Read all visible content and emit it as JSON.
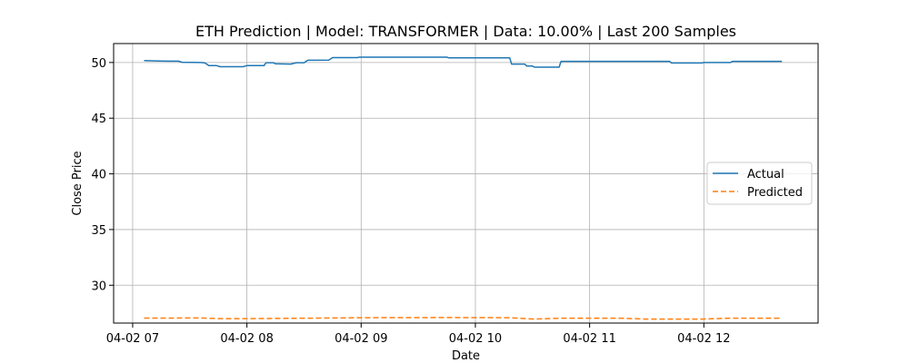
{
  "chart_data": {
    "type": "line",
    "title": "ETH Prediction | Model: TRANSFORMER | Data: 10.00% | Last 200 Samples",
    "xlabel": "Date",
    "ylabel": "Close Price",
    "grid": true,
    "legend_placement": "center-right",
    "xlim": [
      "2025-04-02 06:50",
      "2025-04-02 13:00"
    ],
    "ylim": [
      26.6,
      51.7
    ],
    "x_ticks": [
      {
        "value": "2025-04-02 07:00",
        "label": "04-02 07"
      },
      {
        "value": "2025-04-02 08:00",
        "label": "04-02 08"
      },
      {
        "value": "2025-04-02 09:00",
        "label": "04-02 09"
      },
      {
        "value": "2025-04-02 10:00",
        "label": "04-02 10"
      },
      {
        "value": "2025-04-02 11:00",
        "label": "04-02 11"
      },
      {
        "value": "2025-04-02 12:00",
        "label": "04-02 12"
      }
    ],
    "y_ticks": [
      30,
      35,
      40,
      45,
      50
    ],
    "series": [
      {
        "name": "Actual",
        "color": "#1f77b4",
        "style": "solid",
        "points": [
          [
            "2025-04-02 07:06",
            50.18
          ],
          [
            "2025-04-02 07:12",
            50.14
          ],
          [
            "2025-04-02 07:18",
            50.12
          ],
          [
            "2025-04-02 07:24",
            50.12
          ],
          [
            "2025-04-02 07:26",
            50.02
          ],
          [
            "2025-04-02 07:36",
            50.0
          ],
          [
            "2025-04-02 07:38",
            49.96
          ],
          [
            "2025-04-02 07:40",
            49.72
          ],
          [
            "2025-04-02 07:44",
            49.72
          ],
          [
            "2025-04-02 07:46",
            49.62
          ],
          [
            "2025-04-02 07:58",
            49.62
          ],
          [
            "2025-04-02 08:00",
            49.72
          ],
          [
            "2025-04-02 08:09",
            49.72
          ],
          [
            "2025-04-02 08:10",
            49.98
          ],
          [
            "2025-04-02 08:14",
            49.98
          ],
          [
            "2025-04-02 08:15",
            49.88
          ],
          [
            "2025-04-02 08:20",
            49.87
          ],
          [
            "2025-04-02 08:23",
            49.86
          ],
          [
            "2025-04-02 08:26",
            49.98
          ],
          [
            "2025-04-02 08:30",
            49.98
          ],
          [
            "2025-04-02 08:32",
            50.2
          ],
          [
            "2025-04-02 08:43",
            50.22
          ],
          [
            "2025-04-02 08:45",
            50.44
          ],
          [
            "2025-04-02 08:58",
            50.44
          ],
          [
            "2025-04-02 08:59",
            50.48
          ],
          [
            "2025-04-02 09:45",
            50.48
          ],
          [
            "2025-04-02 09:46",
            50.42
          ],
          [
            "2025-04-02 10:18",
            50.42
          ],
          [
            "2025-04-02 10:19",
            49.86
          ],
          [
            "2025-04-02 10:26",
            49.86
          ],
          [
            "2025-04-02 10:27",
            49.68
          ],
          [
            "2025-04-02 10:30",
            49.68
          ],
          [
            "2025-04-02 10:31",
            49.58
          ],
          [
            "2025-04-02 10:44",
            49.58
          ],
          [
            "2025-04-02 10:45",
            50.1
          ],
          [
            "2025-04-02 11:42",
            50.1
          ],
          [
            "2025-04-02 11:43",
            49.96
          ],
          [
            "2025-04-02 11:59",
            49.96
          ],
          [
            "2025-04-02 12:00",
            50.0
          ],
          [
            "2025-04-02 12:14",
            50.0
          ],
          [
            "2025-04-02 12:15",
            50.1
          ],
          [
            "2025-04-02 12:41",
            50.1
          ]
        ]
      },
      {
        "name": "Predicted",
        "color": "#ff7f0e",
        "style": "dashed",
        "points": [
          [
            "2025-04-02 07:06",
            27.05
          ],
          [
            "2025-04-02 07:36",
            27.06
          ],
          [
            "2025-04-02 07:46",
            27.0
          ],
          [
            "2025-04-02 08:00",
            27.0
          ],
          [
            "2025-04-02 08:20",
            27.02
          ],
          [
            "2025-04-02 08:45",
            27.06
          ],
          [
            "2025-04-02 09:00",
            27.08
          ],
          [
            "2025-04-02 09:45",
            27.1
          ],
          [
            "2025-04-02 10:18",
            27.08
          ],
          [
            "2025-04-02 10:31",
            26.96
          ],
          [
            "2025-04-02 10:45",
            27.04
          ],
          [
            "2025-04-02 11:15",
            27.04
          ],
          [
            "2025-04-02 11:30",
            26.96
          ],
          [
            "2025-04-02 11:59",
            26.96
          ],
          [
            "2025-04-02 12:14",
            27.04
          ],
          [
            "2025-04-02 12:41",
            27.04
          ]
        ]
      }
    ]
  }
}
